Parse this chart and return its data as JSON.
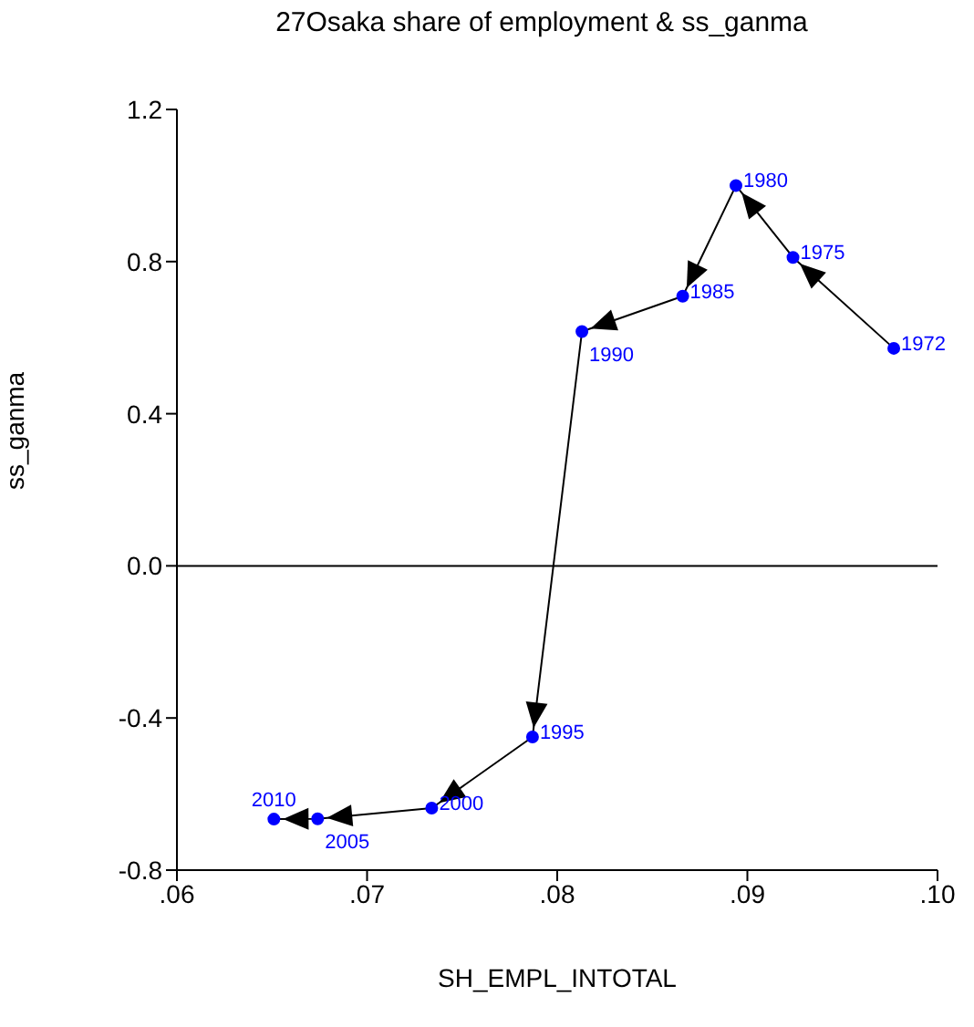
{
  "chart_data": {
    "type": "line",
    "title": "27Osaka share of employment & ss_ganma",
    "xlabel": "SH_EMPL_INTOTAL",
    "ylabel": "ss_ganma",
    "x": [
      0.0977,
      0.0924,
      0.0894,
      0.0866,
      0.0813,
      0.0787,
      0.0734,
      0.0674,
      0.0651
    ],
    "series": [
      {
        "color": "#0000ff",
        "values": [
          0.572,
          0.811,
          1.0,
          0.709,
          0.616,
          -0.45,
          -0.637,
          -0.665,
          -0.666
        ]
      }
    ],
    "annotations": [
      {
        "text": "1972",
        "x": 0.0977,
        "y": 0.572
      },
      {
        "text": "1975",
        "x": 0.0924,
        "y": 0.811
      },
      {
        "text": "1980",
        "x": 0.0894,
        "y": 1.0
      },
      {
        "text": "1985",
        "x": 0.0866,
        "y": 0.709
      },
      {
        "text": "1990",
        "x": 0.0813,
        "y": 0.616
      },
      {
        "text": "1995",
        "x": 0.0787,
        "y": -0.45
      },
      {
        "text": "2000",
        "x": 0.0734,
        "y": -0.637
      },
      {
        "text": "2005",
        "x": 0.0674,
        "y": -0.665
      },
      {
        "text": "2010",
        "x": 0.0651,
        "y": -0.666
      }
    ],
    "xlim": [
      0.06,
      0.1
    ],
    "xticks": [
      {
        "value": 0.06,
        "label": ".06"
      },
      {
        "value": 0.07,
        "label": ".07"
      },
      {
        "value": 0.08,
        "label": ".08"
      },
      {
        "value": 0.09,
        "label": ".09"
      },
      {
        "value": 0.1,
        "label": ".10"
      }
    ],
    "ylim": [
      -0.8,
      1.2
    ],
    "yticks": [
      {
        "value": -0.8,
        "label": "-0.8"
      },
      {
        "value": -0.4,
        "label": "-0.4"
      },
      {
        "value": 0,
        "label": "0.0"
      },
      {
        "value": 0.4,
        "label": "0.4"
      },
      {
        "value": 0.8,
        "label": "0.8"
      },
      {
        "value": 1.2,
        "label": "1.2"
      }
    ],
    "ref_lines": [
      {
        "axis": "y",
        "value": 0,
        "color": "#000000"
      }
    ],
    "marker": "circle"
  }
}
